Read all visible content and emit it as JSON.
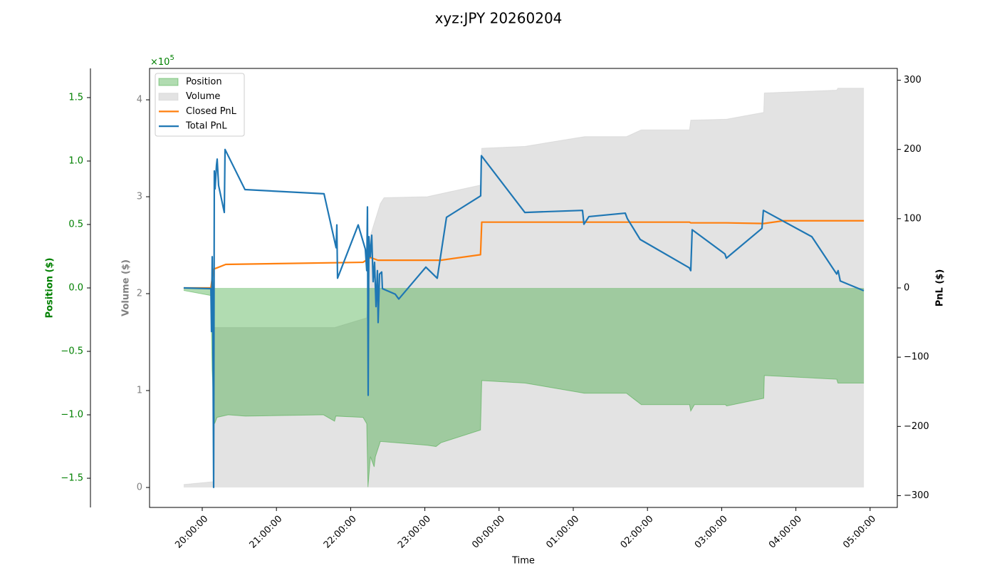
{
  "chart_data": {
    "type": "line",
    "title": "xyz:JPY 20260204",
    "xlabel": "Time",
    "xlim": [
      "19:17:24",
      "05:22:00"
    ],
    "xticks": [
      "20:00:00",
      "21:00:00",
      "22:00:00",
      "23:00:00",
      "00:00:00",
      "01:00:00",
      "02:00:00",
      "03:00:00",
      "04:00:00",
      "05:00:00"
    ],
    "ylabel": "Volume ($)",
    "ylim": [
      -0.206,
      4.324
    ],
    "yticks": [
      0,
      1,
      2,
      3,
      4
    ],
    "y2label": "PnL ($)",
    "y2lim": [
      -317,
      317
    ],
    "y2ticks": [
      {
        "value": -300,
        "label": "−300"
      },
      {
        "value": -200,
        "label": "−200"
      },
      {
        "value": -100,
        "label": "−100"
      },
      0,
      100,
      200,
      300
    ],
    "y3label": "Position ($)",
    "y3lim": [
      -1.73,
      1.73
    ],
    "y3ticks": [
      {
        "value": -1.5,
        "label": "−1.5"
      },
      {
        "value": -1,
        "label": "−1.0"
      },
      {
        "value": -0.5,
        "label": "−0.5"
      },
      {
        "value": 0,
        "label": "0.0"
      },
      0.5,
      {
        "value": 1,
        "label": "1.0"
      },
      1.5
    ],
    "y3_offset": {
      "base": "×10",
      "exponent": "5"
    },
    "legend": "upper left",
    "series": [
      {
        "name": "Position",
        "kind": "area",
        "axis": "y3",
        "color": "#2ca02c",
        "x": [
          "19:45:00",
          "20:07:00",
          "20:08:00",
          "20:10:00",
          "20:12:00",
          "20:21:00",
          "20:35:00",
          "21:38:00",
          "21:47:00",
          "21:48:00",
          "22:10:00",
          "22:13:00",
          "22:14:00",
          "22:16:00",
          "22:19:00",
          "22:20:00",
          "22:24:00",
          "23:02:00",
          "23:09:00",
          "23:13:00",
          "23:45:00",
          "23:46:00",
          "00:21:00",
          "01:09:00",
          "01:43:00",
          "01:55:00",
          "02:34:00",
          "02:35:00",
          "02:38:00",
          "03:03:00",
          "03:04:00",
          "03:34:00",
          "03:34:30",
          "04:33:00",
          "04:34:00",
          "04:55:00"
        ],
        "values": [
          -0.02,
          -0.06,
          -0.65,
          -1.07,
          -1.02,
          -1.0,
          -1.01,
          -1.0,
          -1.05,
          -1.01,
          -1.02,
          -1.07,
          -1.57,
          -1.33,
          -1.41,
          -1.33,
          -1.21,
          -1.24,
          -1.25,
          -1.22,
          -1.12,
          -0.73,
          -0.75,
          -0.83,
          -0.83,
          -0.92,
          -0.92,
          -0.97,
          -0.92,
          -0.92,
          -0.93,
          -0.87,
          -0.69,
          -0.72,
          -0.75,
          -0.75
        ]
      },
      {
        "name": "Volume",
        "kind": "area",
        "axis": "y",
        "color": "#c8c8c8",
        "x": [
          "19:45:00",
          "20:09:00",
          "20:09:10",
          "21:47:00",
          "22:13:00",
          "22:16:00",
          "22:24:00",
          "22:27:00",
          "23:02:00",
          "23:45:00",
          "23:46:00",
          "00:21:00",
          "01:09:00",
          "01:43:00",
          "01:55:00",
          "02:34:00",
          "02:35:00",
          "03:04:00",
          "03:34:00",
          "03:34:30",
          "04:33:00",
          "04:34:00",
          "04:55:00"
        ],
        "values": [
          0.03,
          0.06,
          1.65,
          1.65,
          1.75,
          2.6,
          2.93,
          2.99,
          3.0,
          3.12,
          3.5,
          3.52,
          3.62,
          3.62,
          3.69,
          3.69,
          3.79,
          3.8,
          3.87,
          4.07,
          4.1,
          4.12,
          4.12
        ]
      },
      {
        "name": "Closed PnL",
        "kind": "line",
        "axis": "y2",
        "color": "#ff7f0e",
        "x": [
          "19:45:00",
          "20:07:00",
          "20:09:00",
          "20:12:00",
          "20:19:00",
          "22:10:00",
          "22:16:00",
          "22:22:00",
          "23:13:00",
          "23:45:00",
          "23:46:00",
          "02:34:00",
          "02:35:00",
          "03:04:00",
          "03:34:00",
          "03:50:00",
          "04:55:00"
        ],
        "values": [
          0,
          0,
          27,
          29,
          34,
          37,
          44,
          40,
          40,
          48,
          95,
          95,
          94,
          94,
          93,
          97,
          97
        ]
      },
      {
        "name": "Total PnL",
        "kind": "line",
        "axis": "y2",
        "color": "#1f77b4",
        "x": [
          "19:45:00",
          "20:07:00",
          "20:07:29",
          "20:08:04",
          "20:08:38",
          "20:09:13",
          "20:09:47",
          "20:10:22",
          "20:11:31",
          "20:12:05",
          "20:13:14",
          "20:17:51",
          "20:18:26",
          "20:34:33",
          "21:38:28",
          "21:48:15",
          "21:48:50",
          "21:49:24",
          "22:06:06",
          "22:11:52",
          "22:13:01",
          "22:13:35",
          "22:14:10",
          "22:14:44",
          "22:15:53",
          "22:17:02",
          "22:18:11",
          "22:19:20",
          "22:20:30",
          "22:21:39",
          "22:22:13",
          "22:23:22",
          "22:25:06",
          "22:25:40",
          "22:36:02",
          "22:38:55",
          "23:00:48",
          "23:10:01",
          "23:17:30",
          "23:45:08",
          "23:45:42",
          "00:20:50",
          "01:07:28",
          "01:08:37",
          "01:12:39",
          "01:42:02",
          "01:43:45",
          "01:54:07",
          "02:33:51",
          "02:35:00",
          "02:36:09",
          "03:02:38",
          "03:03:47",
          "03:32:34",
          "03:33:43",
          "04:12:53",
          "04:33:00",
          "04:34:09",
          "04:35:53",
          "04:54:54"
        ],
        "values": [
          0,
          -1,
          -63,
          45,
          -63,
          -288,
          169,
          143,
          177,
          186,
          148,
          109,
          200,
          142,
          136,
          58,
          91,
          14,
          91,
          56,
          25,
          117,
          -155,
          74,
          45,
          76,
          9,
          37,
          -27,
          25,
          -50,
          20,
          23,
          -1,
          -9,
          -16,
          30,
          14,
          102,
          133,
          191,
          109,
          112,
          92,
          103,
          108,
          100,
          70,
          29,
          25,
          84,
          49,
          43,
          86,
          112,
          74,
          20,
          25,
          10,
          -4
        ]
      }
    ]
  }
}
